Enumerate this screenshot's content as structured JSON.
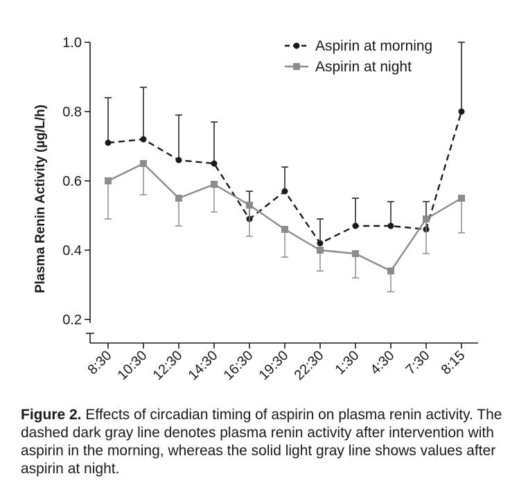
{
  "chart_data": {
    "type": "line",
    "ylabel": "Plasma Renin Activity (µg/L/h)",
    "xlabel": "",
    "categories": [
      "8:30",
      "10:30",
      "12:30",
      "14:30",
      "16:30",
      "19:30",
      "22:30",
      "1:30",
      "4:30",
      "7:30",
      "8:15"
    ],
    "ylim": [
      0.2,
      1.0
    ],
    "yticks": [
      "0.2",
      "0.4",
      "0.6",
      "0.8",
      "1.0"
    ],
    "legend_position": "top-right",
    "series": [
      {
        "name": "Aspirin at morning",
        "style": "dashed",
        "marker": "circle",
        "color": "#1a1a1a",
        "values": [
          0.71,
          0.72,
          0.66,
          0.65,
          0.49,
          0.57,
          0.42,
          0.47,
          0.47,
          0.46,
          0.8
        ],
        "error_upper": [
          0.84,
          0.87,
          0.79,
          0.77,
          0.57,
          0.64,
          0.49,
          0.55,
          0.54,
          0.54,
          1.0
        ]
      },
      {
        "name": "Aspirin at night",
        "style": "solid",
        "marker": "square",
        "color": "#8c8c8c",
        "values": [
          0.6,
          0.65,
          0.55,
          0.59,
          0.53,
          0.46,
          0.4,
          0.39,
          0.34,
          0.49,
          0.55
        ],
        "error_lower": [
          0.49,
          0.56,
          0.47,
          0.51,
          0.44,
          0.38,
          0.34,
          0.32,
          0.28,
          0.39,
          0.45
        ]
      }
    ]
  },
  "caption": {
    "label": "Figure 2.",
    "text": " Effects of circadian timing of aspirin on plasma renin activity. The dashed dark gray line denotes plasma renin activity after intervention with aspirin in the morning, whereas the solid light gray line shows values after aspirin at night."
  }
}
